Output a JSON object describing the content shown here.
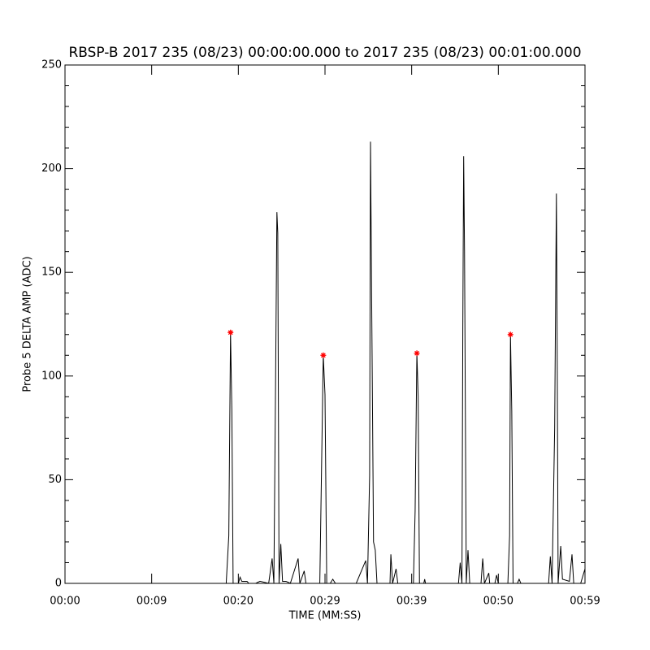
{
  "chart_data": {
    "type": "line",
    "title": "RBSP-B 2017 235 (08/23) 00:00:00.000 to 2017 235 (08/23) 00:01:00.000",
    "x_label": "TIME (MM:SS)",
    "y_label": "Probe 5 DELTA AMP (ADC)",
    "xlim": [
      0,
      60
    ],
    "ylim": [
      0,
      250
    ],
    "xticks": [
      {
        "value": 0,
        "label": "00:00"
      },
      {
        "value": 10,
        "label": "00:09"
      },
      {
        "value": 20,
        "label": "00:20"
      },
      {
        "value": 30,
        "label": "00:29"
      },
      {
        "value": 40,
        "label": "00:39"
      },
      {
        "value": 50,
        "label": "00:50"
      },
      {
        "value": 60,
        "label": "00:59"
      }
    ],
    "yticks": [
      0,
      50,
      100,
      150,
      200,
      250
    ],
    "yminorticks": [
      10,
      20,
      30,
      40,
      60,
      70,
      80,
      90,
      110,
      120,
      130,
      140,
      160,
      170,
      180,
      190,
      210,
      220,
      230,
      240
    ],
    "x": [
      0,
      18.6,
      18.9,
      19.1,
      19.25,
      19.4,
      20.0,
      20.2,
      20.4,
      21.0,
      21.2,
      22.0,
      22.5,
      23.5,
      23.9,
      24.1,
      24.3,
      24.45,
      24.55,
      24.7,
      24.9,
      25.1,
      25.5,
      26.0,
      26.9,
      27.1,
      27.6,
      27.8,
      29.4,
      29.8,
      30.0,
      30.2,
      30.6,
      30.9,
      31.2,
      33.6,
      34.7,
      34.9,
      35.15,
      35.25,
      35.4,
      35.6,
      35.8,
      36.0,
      37.5,
      37.6,
      37.8,
      38.2,
      38.4,
      40.2,
      40.4,
      40.6,
      40.75,
      40.9,
      41.4,
      41.5,
      41.6,
      45.4,
      45.6,
      45.8,
      45.9,
      46.0,
      46.1,
      46.3,
      46.5,
      46.7,
      48.0,
      48.2,
      48.4,
      48.9,
      49.0,
      49.6,
      49.8,
      50.0,
      51.1,
      51.3,
      51.4,
      51.55,
      51.7,
      52.2,
      52.4,
      52.6,
      55.8,
      56.0,
      56.2,
      56.5,
      56.7,
      56.8,
      56.9,
      57.2,
      57.4,
      58.2,
      58.5,
      58.7,
      59.5,
      60
    ],
    "series": [
      {
        "color": "#000000",
        "values": [
          0,
          0,
          23,
          121,
          84,
          0,
          0,
          3,
          1,
          1,
          0,
          0,
          1,
          0,
          12,
          0,
          98,
          179,
          169,
          0,
          19,
          1,
          1,
          0,
          12,
          0,
          6,
          0,
          0,
          110,
          91,
          0,
          0,
          2,
          0,
          0,
          11,
          0,
          52,
          213,
          128,
          20,
          16,
          0,
          0,
          14,
          0,
          7,
          0,
          0,
          35,
          111,
          90,
          0,
          0,
          2,
          0,
          0,
          10,
          0,
          122,
          206,
          160,
          0,
          16,
          0,
          0,
          12,
          0,
          5,
          0,
          0,
          4,
          0,
          0,
          23,
          120,
          83,
          0,
          0,
          2,
          0,
          0,
          13,
          0,
          75,
          188,
          104,
          0,
          18,
          2,
          1,
          14,
          0,
          0,
          7
        ]
      }
    ],
    "markers": {
      "color": "#ff0000",
      "x": [
        19.1,
        29.8,
        40.6,
        51.4
      ],
      "values": [
        121,
        110,
        111,
        120
      ]
    }
  }
}
